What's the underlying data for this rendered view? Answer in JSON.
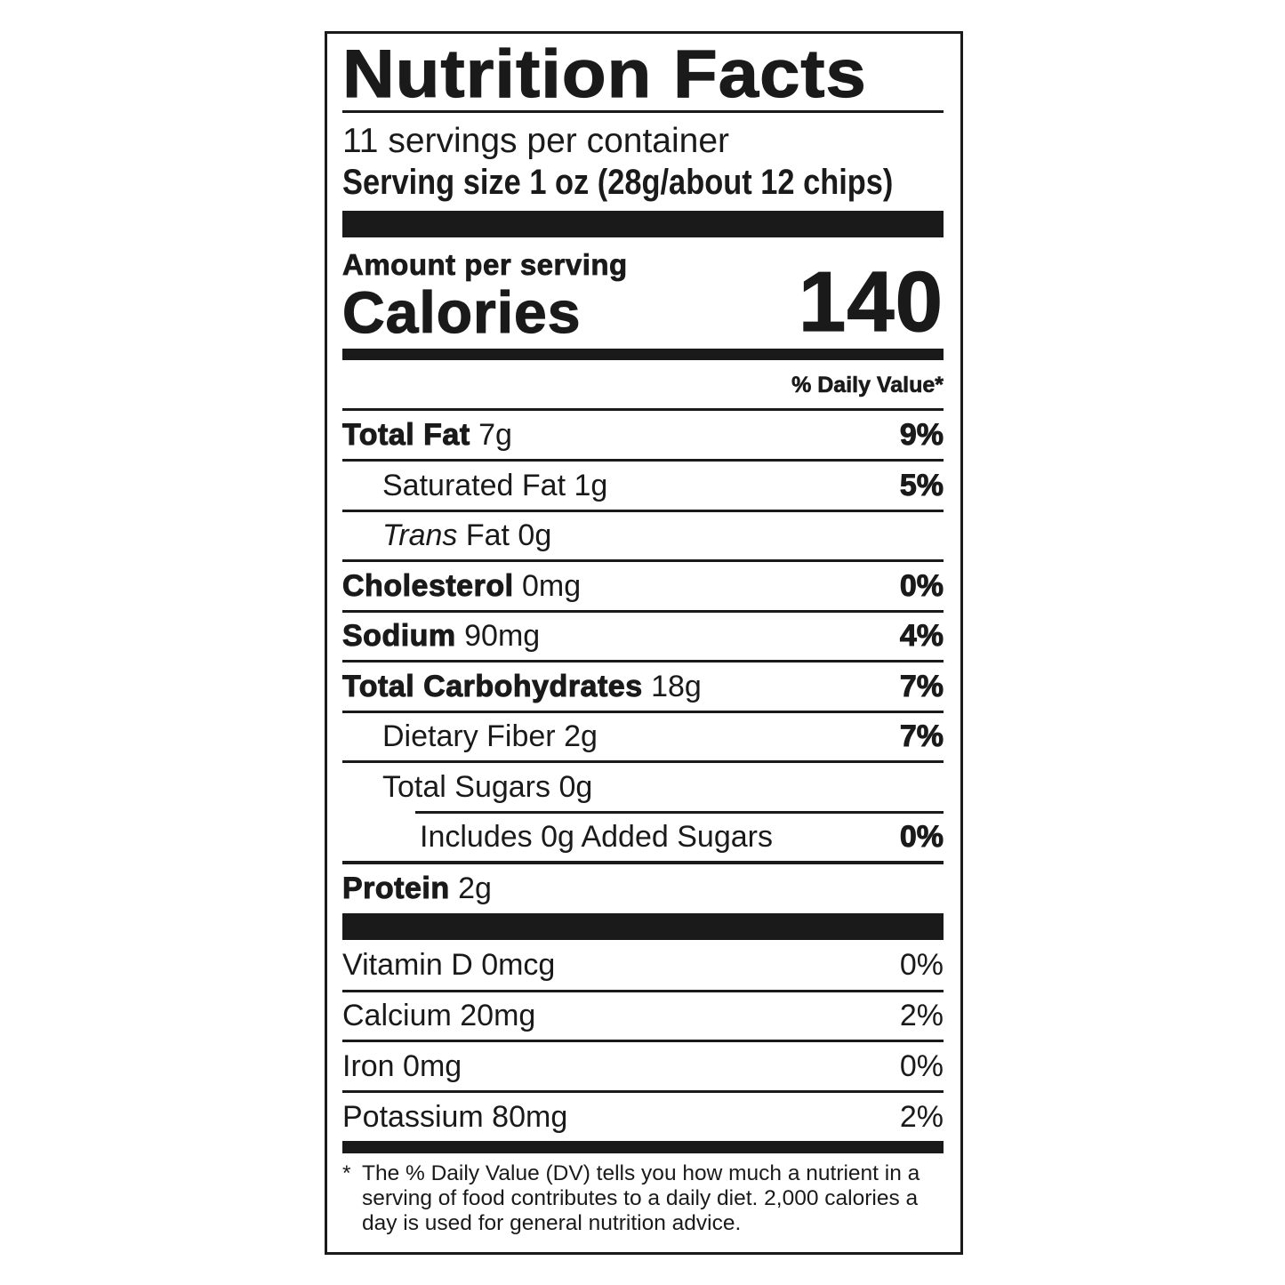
{
  "title": "Nutrition Facts",
  "servings_per_container": "11 servings per container",
  "serving_size": "Serving size  1 oz (28g/about 12 chips)",
  "amount_per_serving": "Amount per serving",
  "calories_label": "Calories",
  "calories_value": "140",
  "daily_value_header": "% Daily Value*",
  "nutrients": [
    {
      "label": "Total Fat",
      "bold": true,
      "italic_prefix": "",
      "amount": "7g",
      "dv": "9%",
      "indent": 0
    },
    {
      "label": "Saturated Fat",
      "bold": false,
      "italic_prefix": "",
      "amount": "1g",
      "dv": "5%",
      "indent": 1
    },
    {
      "label": "Fat",
      "bold": false,
      "italic_prefix": "Trans",
      "amount": "0g",
      "dv": "",
      "indent": 1
    },
    {
      "label": "Cholesterol",
      "bold": true,
      "italic_prefix": "",
      "amount": "0mg",
      "dv": "0%",
      "indent": 0
    },
    {
      "label": "Sodium",
      "bold": true,
      "italic_prefix": "",
      "amount": "90mg",
      "dv": "4%",
      "indent": 0
    },
    {
      "label": "Total Carbohydrates",
      "bold": true,
      "italic_prefix": "",
      "amount": "18g",
      "dv": "7%",
      "indent": 0
    },
    {
      "label": "Dietary Fiber",
      "bold": false,
      "italic_prefix": "",
      "amount": "2g",
      "dv": "7%",
      "indent": 1
    },
    {
      "label": "Total Sugars",
      "bold": false,
      "italic_prefix": "",
      "amount": "0g",
      "dv": "",
      "indent": 1
    },
    {
      "label": "Includes 0g Added Sugars",
      "bold": false,
      "italic_prefix": "",
      "amount": "",
      "dv": "0%",
      "indent": 2
    },
    {
      "label": "Protein",
      "bold": true,
      "italic_prefix": "",
      "amount": "2g",
      "dv": "",
      "indent": 0
    }
  ],
  "vitamins": [
    {
      "label": "Vitamin D 0mcg",
      "dv": "0%"
    },
    {
      "label": "Calcium 20mg",
      "dv": "2%"
    },
    {
      "label": "Iron 0mg",
      "dv": "0%"
    },
    {
      "label": "Potassium 80mg",
      "dv": "2%"
    }
  ],
  "footnote_marker": "*",
  "footnote": "The % Daily Value (DV) tells you how much a nutrient in a serving of food contributes to a daily diet. 2,000 calories a day is used for general nutrition advice."
}
